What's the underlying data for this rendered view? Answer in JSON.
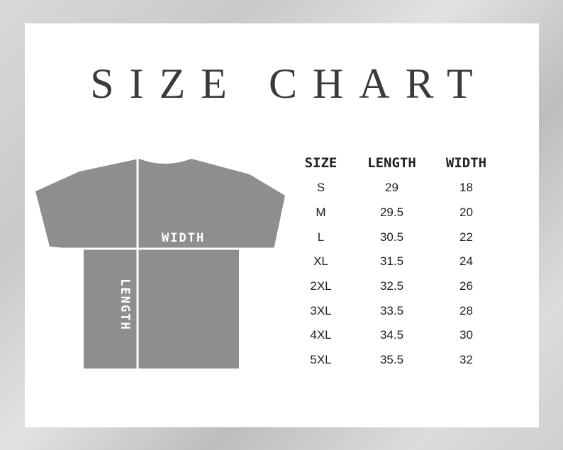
{
  "title": "SIZE CHART",
  "shirt": {
    "width_label": "WIDTH",
    "length_label": "LENGTH",
    "color": "#8e8e8e"
  },
  "table": {
    "headers": [
      "SIZE",
      "LENGTH",
      "WIDTH"
    ],
    "rows": [
      [
        "S",
        "29",
        "18"
      ],
      [
        "M",
        "29.5",
        "20"
      ],
      [
        "L",
        "30.5",
        "22"
      ],
      [
        "XL",
        "31.5",
        "24"
      ],
      [
        "2XL",
        "32.5",
        "26"
      ],
      [
        "3XL",
        "33.5",
        "28"
      ],
      [
        "4XL",
        "34.5",
        "30"
      ],
      [
        "5XL",
        "35.5",
        "32"
      ]
    ]
  }
}
